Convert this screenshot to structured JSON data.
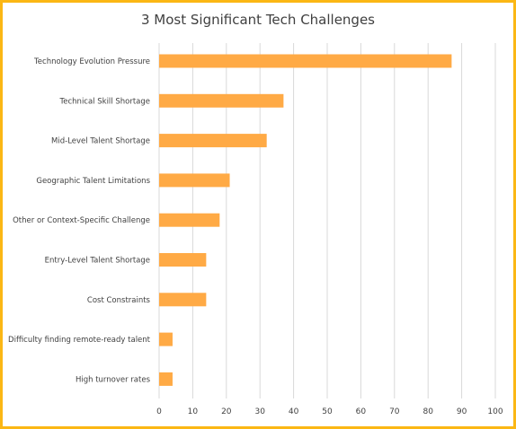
{
  "chart_data": {
    "type": "bar",
    "orientation": "horizontal",
    "title": "3 Most Significant Tech Challenges",
    "xlabel": "",
    "ylabel": "",
    "categories": [
      "Technology Evolution Pressure",
      "Technical Skill Shortage",
      "Mid-Level Talent Shortage",
      "Geographic Talent Limitations",
      "Other or Context-Specific Challenge",
      "Entry-Level Talent Shortage",
      "Cost Constraints",
      "Difficulty finding remote-ready talent",
      "High turnover rates"
    ],
    "values": [
      87,
      37,
      32,
      21,
      18,
      14,
      14,
      4,
      4
    ],
    "xlim": [
      0,
      100
    ],
    "xticks": [
      "0",
      "10",
      "20",
      "30",
      "40",
      "50",
      "60",
      "70",
      "80",
      "90",
      "100"
    ],
    "grid": true,
    "legend": "none",
    "bar_color": "#FFAA45",
    "frame_color": "#FBB715"
  }
}
